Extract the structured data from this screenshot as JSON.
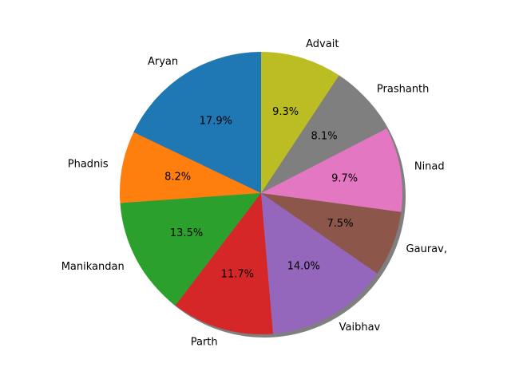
{
  "chart_data": {
    "type": "pie",
    "title": "",
    "shadow": true,
    "start_angle_deg": 90,
    "direction": "counterclockwise",
    "slices": [
      {
        "label": "Aryan",
        "value": 17.9,
        "pct_label": "17.9%",
        "color": "#1f77b4"
      },
      {
        "label": "Phadnis",
        "value": 8.2,
        "pct_label": "8.2%",
        "color": "#ff7f0e"
      },
      {
        "label": "Manikandan",
        "value": 13.5,
        "pct_label": "13.5%",
        "color": "#2ca02c"
      },
      {
        "label": "Parth",
        "value": 11.7,
        "pct_label": "11.7%",
        "color": "#d62728"
      },
      {
        "label": "Vaibhav",
        "value": 14.0,
        "pct_label": "14.0%",
        "color": "#9467bd"
      },
      {
        "label": "Gaurav,",
        "value": 7.5,
        "pct_label": "7.5%",
        "color": "#8c564b"
      },
      {
        "label": "Ninad",
        "value": 9.7,
        "pct_label": "9.7%",
        "color": "#e377c2"
      },
      {
        "label": "Prashanth",
        "value": 8.1,
        "pct_label": "8.1%",
        "color": "#7f7f7f"
      },
      {
        "label": "Advait",
        "value": 9.3,
        "pct_label": "9.3%",
        "color": "#bcbd22"
      }
    ]
  }
}
